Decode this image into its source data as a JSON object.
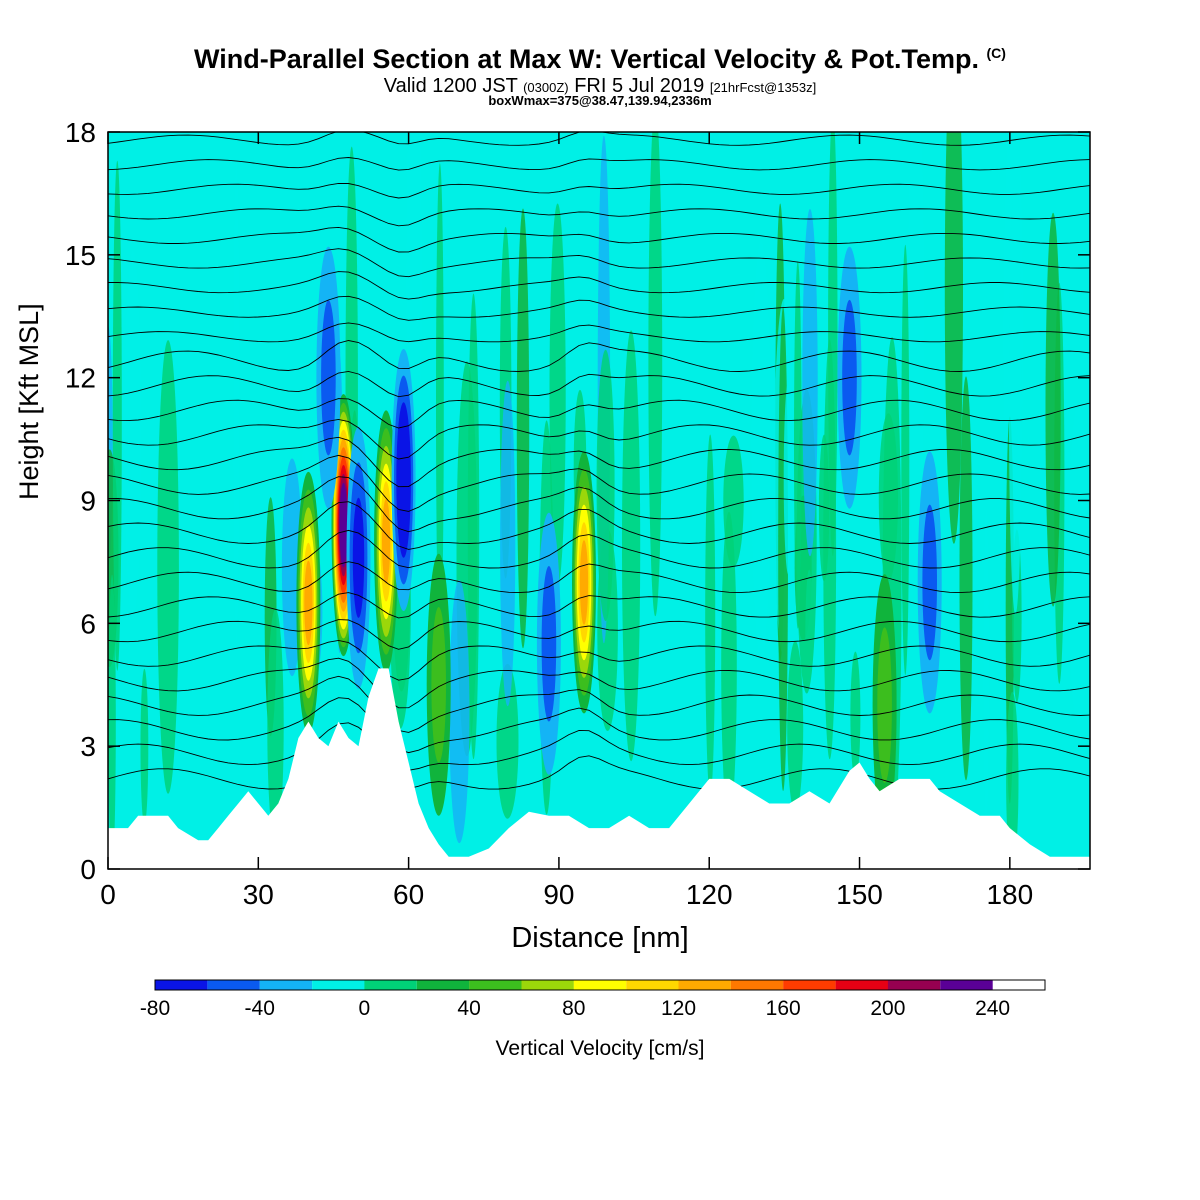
{
  "header": {
    "title": "Wind-Parallel Section at Max W: Vertical Velocity & Pot.Temp.",
    "title_mark": "(C)",
    "valid_prefix": "Valid 1200 JST",
    "valid_utc": "(0300Z)",
    "valid_date": "FRI 5 Jul 2019",
    "forecast": "[21hrFcst@1353z]",
    "box_info": "boxWmax=375@38.47,139.94,2336m"
  },
  "chart_data": {
    "type": "heatmap",
    "xlabel": "Distance [nm]",
    "ylabel": "Height [Kft MSL]",
    "xlim": [
      0,
      196
    ],
    "ylim": [
      0,
      18
    ],
    "x_ticks": [
      0,
      30,
      60,
      90,
      120,
      150,
      180
    ],
    "y_ticks": [
      0,
      3,
      6,
      9,
      12,
      15,
      18
    ],
    "colorbar": {
      "label": "Vertical Velocity [cm/s]",
      "levels": [
        -80,
        -60,
        -40,
        -20,
        0,
        20,
        40,
        60,
        80,
        100,
        120,
        140,
        160,
        180,
        200,
        220,
        240,
        260
      ],
      "tick_labels": [
        "-80",
        "-40",
        "0",
        "40",
        "80",
        "120",
        "160",
        "200",
        "240"
      ],
      "tick_values": [
        -80,
        -40,
        0,
        40,
        80,
        120,
        160,
        200,
        240
      ],
      "colors": [
        "#0a14e6",
        "#0a5af0",
        "#14b4f5",
        "#00f0e6",
        "#00d278",
        "#10b43c",
        "#3cbe1e",
        "#9bd70a",
        "#ffff00",
        "#ffd700",
        "#ffaa00",
        "#ff7800",
        "#ff3c00",
        "#e60014",
        "#960050",
        "#5a0096"
      ]
    },
    "background_color": "#00f0e6",
    "terrain_profile": [
      [
        0,
        1.0
      ],
      [
        4,
        1.0
      ],
      [
        6,
        1.3
      ],
      [
        12,
        1.3
      ],
      [
        14,
        1.0
      ],
      [
        18,
        0.7
      ],
      [
        20,
        0.7
      ],
      [
        22,
        1.0
      ],
      [
        24,
        1.3
      ],
      [
        26,
        1.6
      ],
      [
        28,
        1.9
      ],
      [
        30,
        1.6
      ],
      [
        32,
        1.3
      ],
      [
        34,
        1.6
      ],
      [
        36,
        2.2
      ],
      [
        38,
        3.2
      ],
      [
        40,
        3.6
      ],
      [
        42,
        3.2
      ],
      [
        44,
        3.0
      ],
      [
        46,
        3.6
      ],
      [
        48,
        3.2
      ],
      [
        50,
        3.0
      ],
      [
        52,
        4.2
      ],
      [
        54,
        4.9
      ],
      [
        56,
        4.9
      ],
      [
        58,
        3.6
      ],
      [
        60,
        2.6
      ],
      [
        62,
        1.6
      ],
      [
        64,
        1.0
      ],
      [
        66,
        0.6
      ],
      [
        68,
        0.3
      ],
      [
        72,
        0.3
      ],
      [
        76,
        0.5
      ],
      [
        80,
        1.0
      ],
      [
        84,
        1.4
      ],
      [
        88,
        1.3
      ],
      [
        92,
        1.3
      ],
      [
        96,
        1.0
      ],
      [
        100,
        1.0
      ],
      [
        104,
        1.3
      ],
      [
        108,
        1.0
      ],
      [
        112,
        1.0
      ],
      [
        116,
        1.6
      ],
      [
        120,
        2.2
      ],
      [
        124,
        2.2
      ],
      [
        128,
        1.9
      ],
      [
        132,
        1.6
      ],
      [
        136,
        1.6
      ],
      [
        140,
        1.9
      ],
      [
        144,
        1.6
      ],
      [
        148,
        2.4
      ],
      [
        150,
        2.6
      ],
      [
        152,
        2.2
      ],
      [
        154,
        1.9
      ],
      [
        158,
        2.2
      ],
      [
        164,
        2.2
      ],
      [
        166,
        1.9
      ],
      [
        170,
        1.6
      ],
      [
        174,
        1.3
      ],
      [
        178,
        1.3
      ],
      [
        180,
        1.0
      ],
      [
        184,
        0.6
      ],
      [
        188,
        0.3
      ],
      [
        196,
        0.3
      ]
    ],
    "updraft_cores": [
      {
        "x": 40,
        "y": 6.5,
        "peak": 110
      },
      {
        "x": 47,
        "y": 8.4,
        "peak": 230
      },
      {
        "x": 55.5,
        "y": 8.0,
        "peak": 120
      },
      {
        "x": 95,
        "y": 7.0,
        "peak": 110
      },
      {
        "x": 66,
        "y": 4.5,
        "peak": 40
      },
      {
        "x": 155,
        "y": 4.0,
        "peak": 40
      }
    ],
    "downdraft_cores": [
      {
        "x": 59,
        "y": 9.5,
        "peak": -80
      },
      {
        "x": 50,
        "y": 7.6,
        "peak": -60
      },
      {
        "x": 44,
        "y": 12.0,
        "peak": -40
      },
      {
        "x": 88,
        "y": 5.5,
        "peak": -40
      },
      {
        "x": 148,
        "y": 12.0,
        "peak": -35
      },
      {
        "x": 164,
        "y": 7.0,
        "peak": -40
      }
    ],
    "theta_contours": {
      "count": 28,
      "bottom": 2.2,
      "top": 18.4,
      "color": "#000000"
    }
  }
}
